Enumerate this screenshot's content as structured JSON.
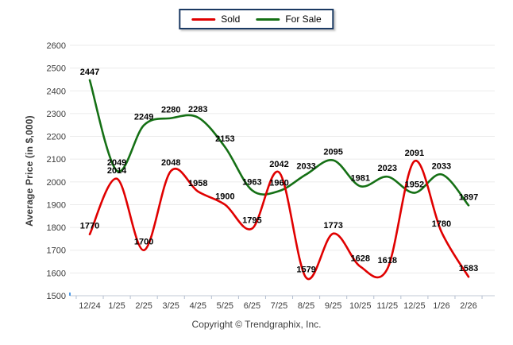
{
  "legend": {
    "items": [
      {
        "label": "Sold",
        "color": "#e00000"
      },
      {
        "label": "For Sale",
        "color": "#157015"
      }
    ],
    "border_color": "#1b3a63"
  },
  "chart_data": {
    "type": "line",
    "title": "",
    "xlabel": "",
    "ylabel": "Average Price (in $,000)",
    "categories": [
      "12/24",
      "1/25",
      "2/25",
      "3/25",
      "4/25",
      "5/25",
      "6/25",
      "7/25",
      "8/25",
      "9/25",
      "10/25",
      "11/25",
      "12/25",
      "1/26",
      "2/26"
    ],
    "series": [
      {
        "name": "Sold",
        "color": "#e00000",
        "values": [
          1770,
          2014,
          1700,
          2048,
          1958,
          1900,
          1795,
          2042,
          1579,
          1773,
          1628,
          1618,
          2091,
          1780,
          1583
        ]
      },
      {
        "name": "For Sale",
        "color": "#157015",
        "values": [
          2447,
          2049,
          2249,
          2280,
          2283,
          2153,
          1963,
          1960,
          2033,
          2095,
          1981,
          2023,
          1952,
          2033,
          1897
        ]
      }
    ],
    "ylim": [
      1500,
      2600
    ],
    "yticks": [
      1500,
      1600,
      1700,
      1800,
      1900,
      2000,
      2100,
      2200,
      2300,
      2400,
      2500,
      2600
    ],
    "grid": true,
    "smooth": true,
    "data_labels": true,
    "legend_position": "top-center"
  },
  "footer": {
    "copyright": "Copyright © Trendgraphix, Inc."
  }
}
